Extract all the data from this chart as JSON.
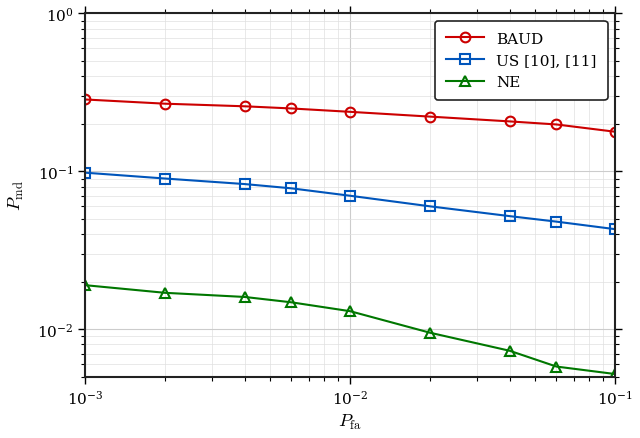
{
  "title": "",
  "xlabel": "$P_{\\mathrm{fa}}$",
  "ylabel": "$P_{\\mathrm{md}}$",
  "xlim": [
    0.001,
    0.1
  ],
  "ylim": [
    0.005,
    1.0
  ],
  "x_BAUD": [
    0.001,
    0.002,
    0.004,
    0.006,
    0.01,
    0.02,
    0.04,
    0.06,
    0.1
  ],
  "y_BAUD": [
    0.285,
    0.268,
    0.258,
    0.25,
    0.238,
    0.222,
    0.207,
    0.198,
    0.178
  ],
  "x_US": [
    0.001,
    0.002,
    0.004,
    0.006,
    0.01,
    0.02,
    0.04,
    0.06,
    0.1
  ],
  "y_US": [
    0.098,
    0.09,
    0.083,
    0.078,
    0.07,
    0.06,
    0.052,
    0.048,
    0.043
  ],
  "x_NE": [
    0.001,
    0.002,
    0.004,
    0.006,
    0.01,
    0.02,
    0.04,
    0.06,
    0.1
  ],
  "y_NE": [
    0.019,
    0.017,
    0.016,
    0.0148,
    0.013,
    0.0095,
    0.0073,
    0.0058,
    0.0052
  ],
  "color_BAUD": "#cc0000",
  "color_US": "#0055bb",
  "color_NE": "#007700",
  "label_BAUD": "BAUD",
  "label_US": "US [10], [11]",
  "label_NE": "NE",
  "grid_major_color": "#cccccc",
  "grid_minor_color": "#e0e0e0",
  "bg_color": "#ffffff",
  "spine_color": "#222222",
  "tick_label_size": 11,
  "label_fontsize": 13,
  "legend_fontsize": 11
}
